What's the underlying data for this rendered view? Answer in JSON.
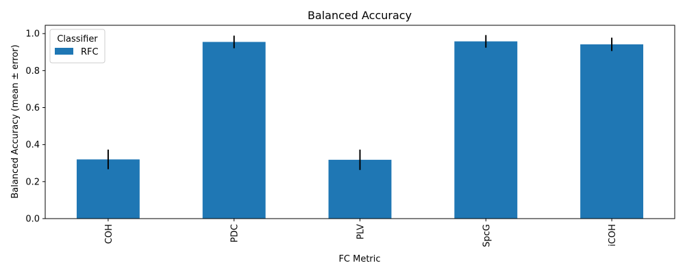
{
  "chart_data": {
    "type": "bar",
    "title": "Balanced Accuracy",
    "xlabel": "FC Metric",
    "ylabel": "Balanced Accuracy (mean ± error)",
    "categories": [
      "COH",
      "PDC",
      "PLV",
      "SpcG",
      "iCOH"
    ],
    "series": [
      {
        "name": "RFC",
        "values": [
          0.32,
          0.955,
          0.318,
          0.958,
          0.942
        ],
        "errors": [
          0.053,
          0.034,
          0.055,
          0.034,
          0.036
        ],
        "color": "#1f77b4"
      }
    ],
    "ylim": [
      0,
      1.045
    ],
    "yticks": [
      0.0,
      0.2,
      0.4,
      0.6,
      0.8,
      1.0
    ],
    "ytick_labels": [
      "0.0",
      "0.2",
      "0.4",
      "0.6",
      "0.8",
      "1.0"
    ],
    "legend": {
      "title": "Classifier",
      "position": "top-left"
    },
    "grid": false
  }
}
